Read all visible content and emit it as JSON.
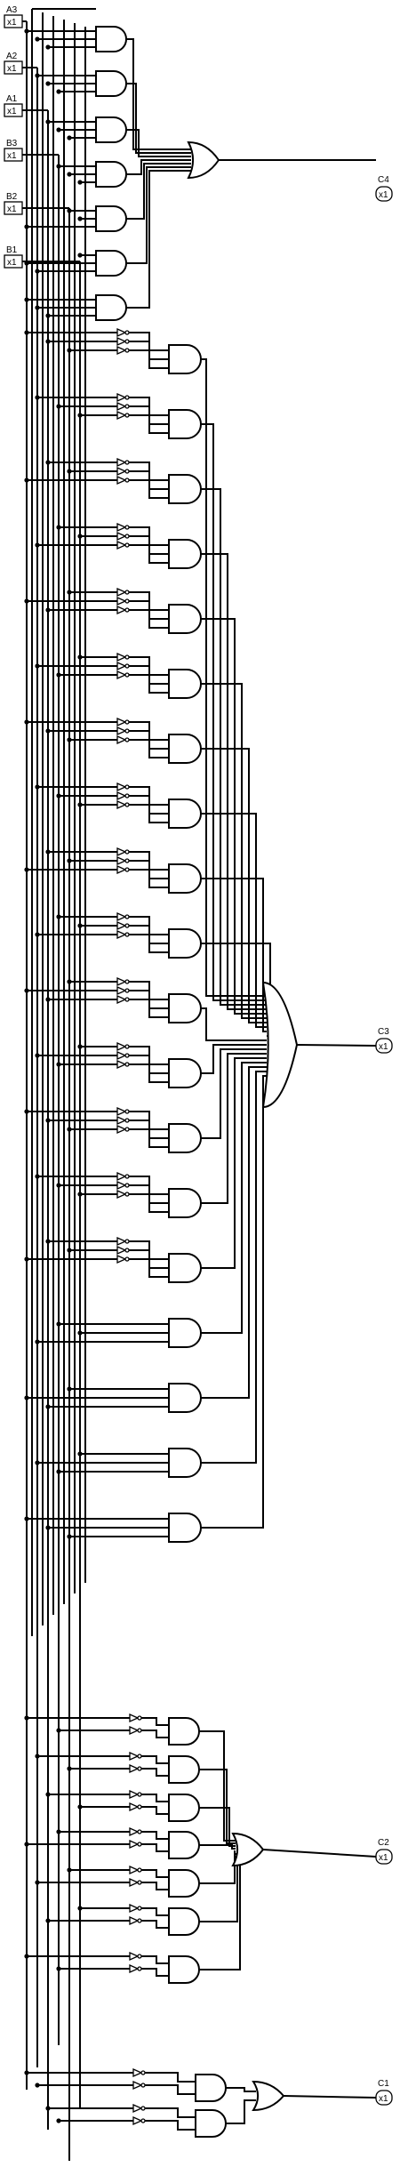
{
  "inputs": [
    {
      "label": "A3",
      "value": "x1"
    },
    {
      "label": "A2",
      "value": "x1"
    },
    {
      "label": "A1",
      "value": "x1"
    },
    {
      "label": "B3",
      "value": "x1"
    },
    {
      "label": "B2",
      "value": "x1"
    },
    {
      "label": "B1",
      "value": "x1"
    }
  ],
  "outputs": [
    {
      "label": "C4",
      "value": "x1"
    },
    {
      "label": "C3",
      "value": "x1"
    },
    {
      "label": "C2",
      "value": "x1"
    },
    {
      "label": "C1",
      "value": "x1"
    }
  ],
  "colors": {
    "line": "#000000",
    "background": "#ffffff"
  }
}
